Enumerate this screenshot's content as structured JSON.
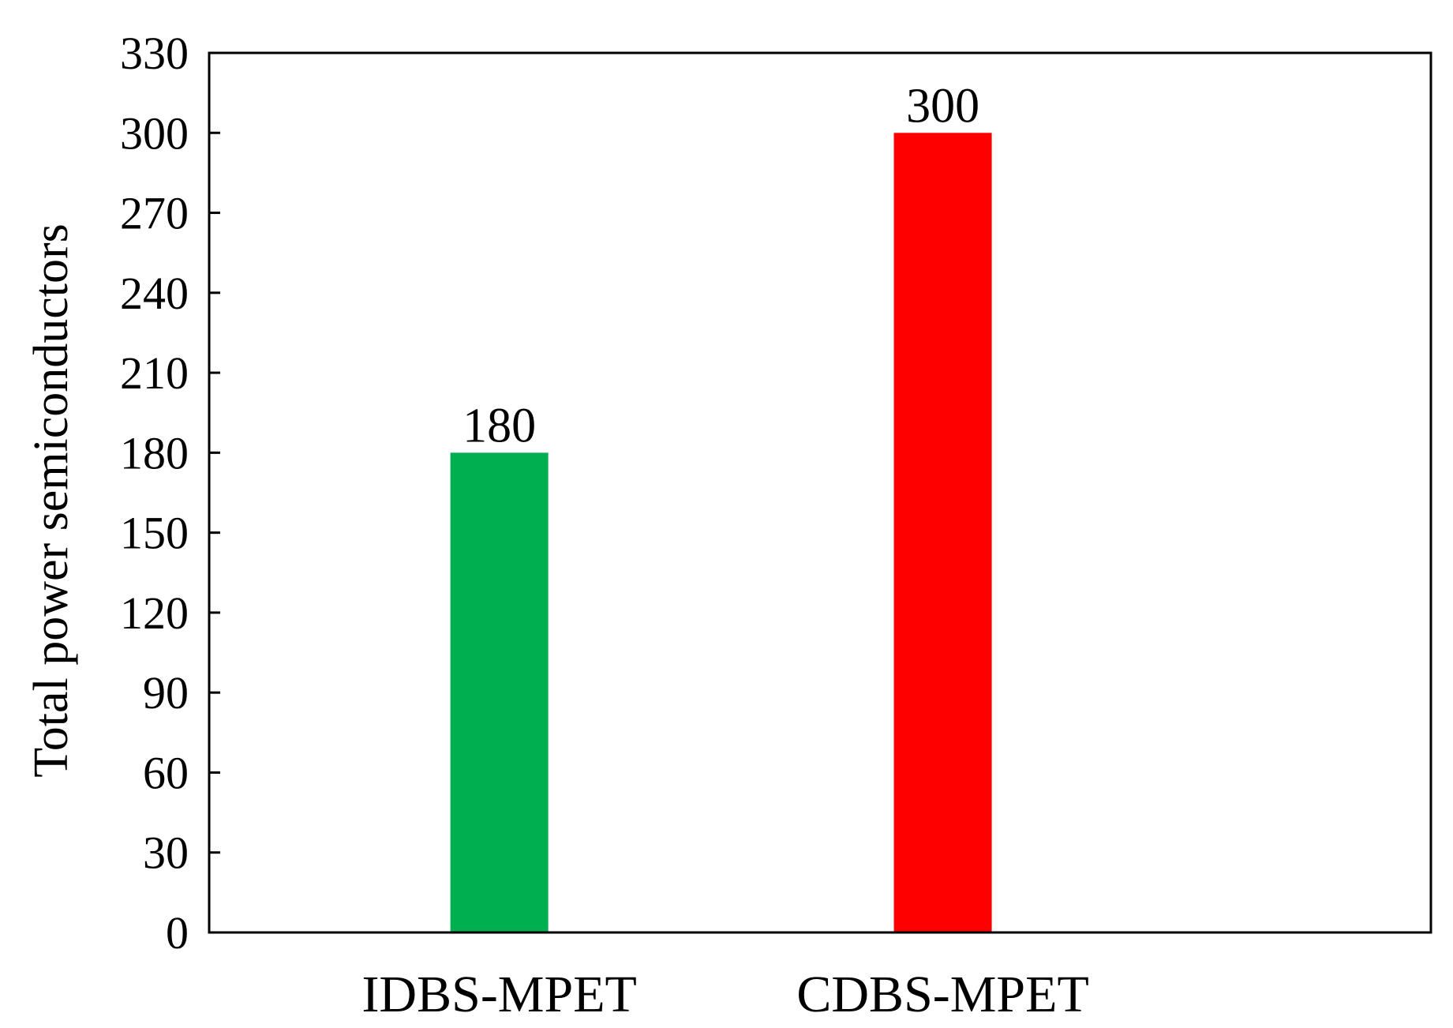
{
  "chart_data": {
    "type": "bar",
    "title": "",
    "xlabel": "",
    "ylabel": "Total power semiconductors",
    "categories": [
      "IDBS-MPET",
      "CDBS-MPET"
    ],
    "values": [
      180,
      300
    ],
    "data_labels": [
      "180",
      "300"
    ],
    "colors": [
      "#00b050",
      "#ff0000"
    ],
    "ylim": [
      0,
      330
    ],
    "yticks": [
      0,
      30,
      60,
      90,
      120,
      150,
      180,
      210,
      240,
      270,
      300,
      330
    ],
    "grid": false,
    "legend": "none"
  }
}
